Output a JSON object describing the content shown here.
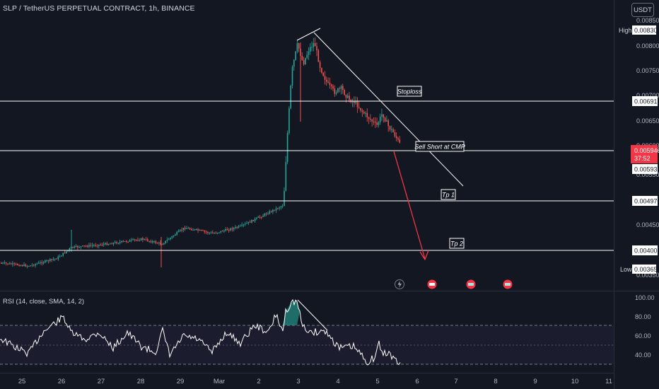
{
  "header": {
    "title": "SLP / TetherUS PERPETUAL CONTRACT, 1h, BINANCE"
  },
  "currency_button": "USDT",
  "colors": {
    "bg": "#131722",
    "up": "#26a69a",
    "down": "#ef5350",
    "line": "#ffffff",
    "current": "#f23645",
    "rsi": "#ffffff"
  },
  "price_axis": {
    "ticks": [
      "0.008500",
      "0.008000",
      "0.007500",
      "0.007000",
      "0.006500",
      "0.006000",
      "0.005500",
      "0.004500",
      "0.003500"
    ],
    "high_label": "High",
    "high_value": "0.008306",
    "low_label": "Low",
    "low_value": "0.003657",
    "current_price": "0.005946",
    "countdown": "37:52",
    "sell_level_value": "0.005932"
  },
  "levels": [
    {
      "name": "stoploss",
      "label": "Stoploss",
      "value": "0.006916"
    },
    {
      "name": "sell-short",
      "label": "Sell Short at CMP",
      "value": "0.005932"
    },
    {
      "name": "tp1",
      "label": "Tp 1",
      "value": "0.004970"
    },
    {
      "name": "tp2",
      "label": "Tp 2",
      "value": "0.004008"
    }
  ],
  "time_axis": [
    "25",
    "26",
    "27",
    "28",
    "29",
    "Mar",
    "2",
    "3",
    "4",
    "5",
    "6",
    "7",
    "8",
    "9",
    "10",
    "11"
  ],
  "rsi": {
    "label": "RSI (14, close, SMA, 14, 2)",
    "ticks": [
      "100.00",
      "80.00",
      "60.00",
      "40.00"
    ]
  },
  "event_icons": [
    "lightning-icon",
    "earnings-icon",
    "earnings-icon",
    "earnings-icon"
  ]
}
